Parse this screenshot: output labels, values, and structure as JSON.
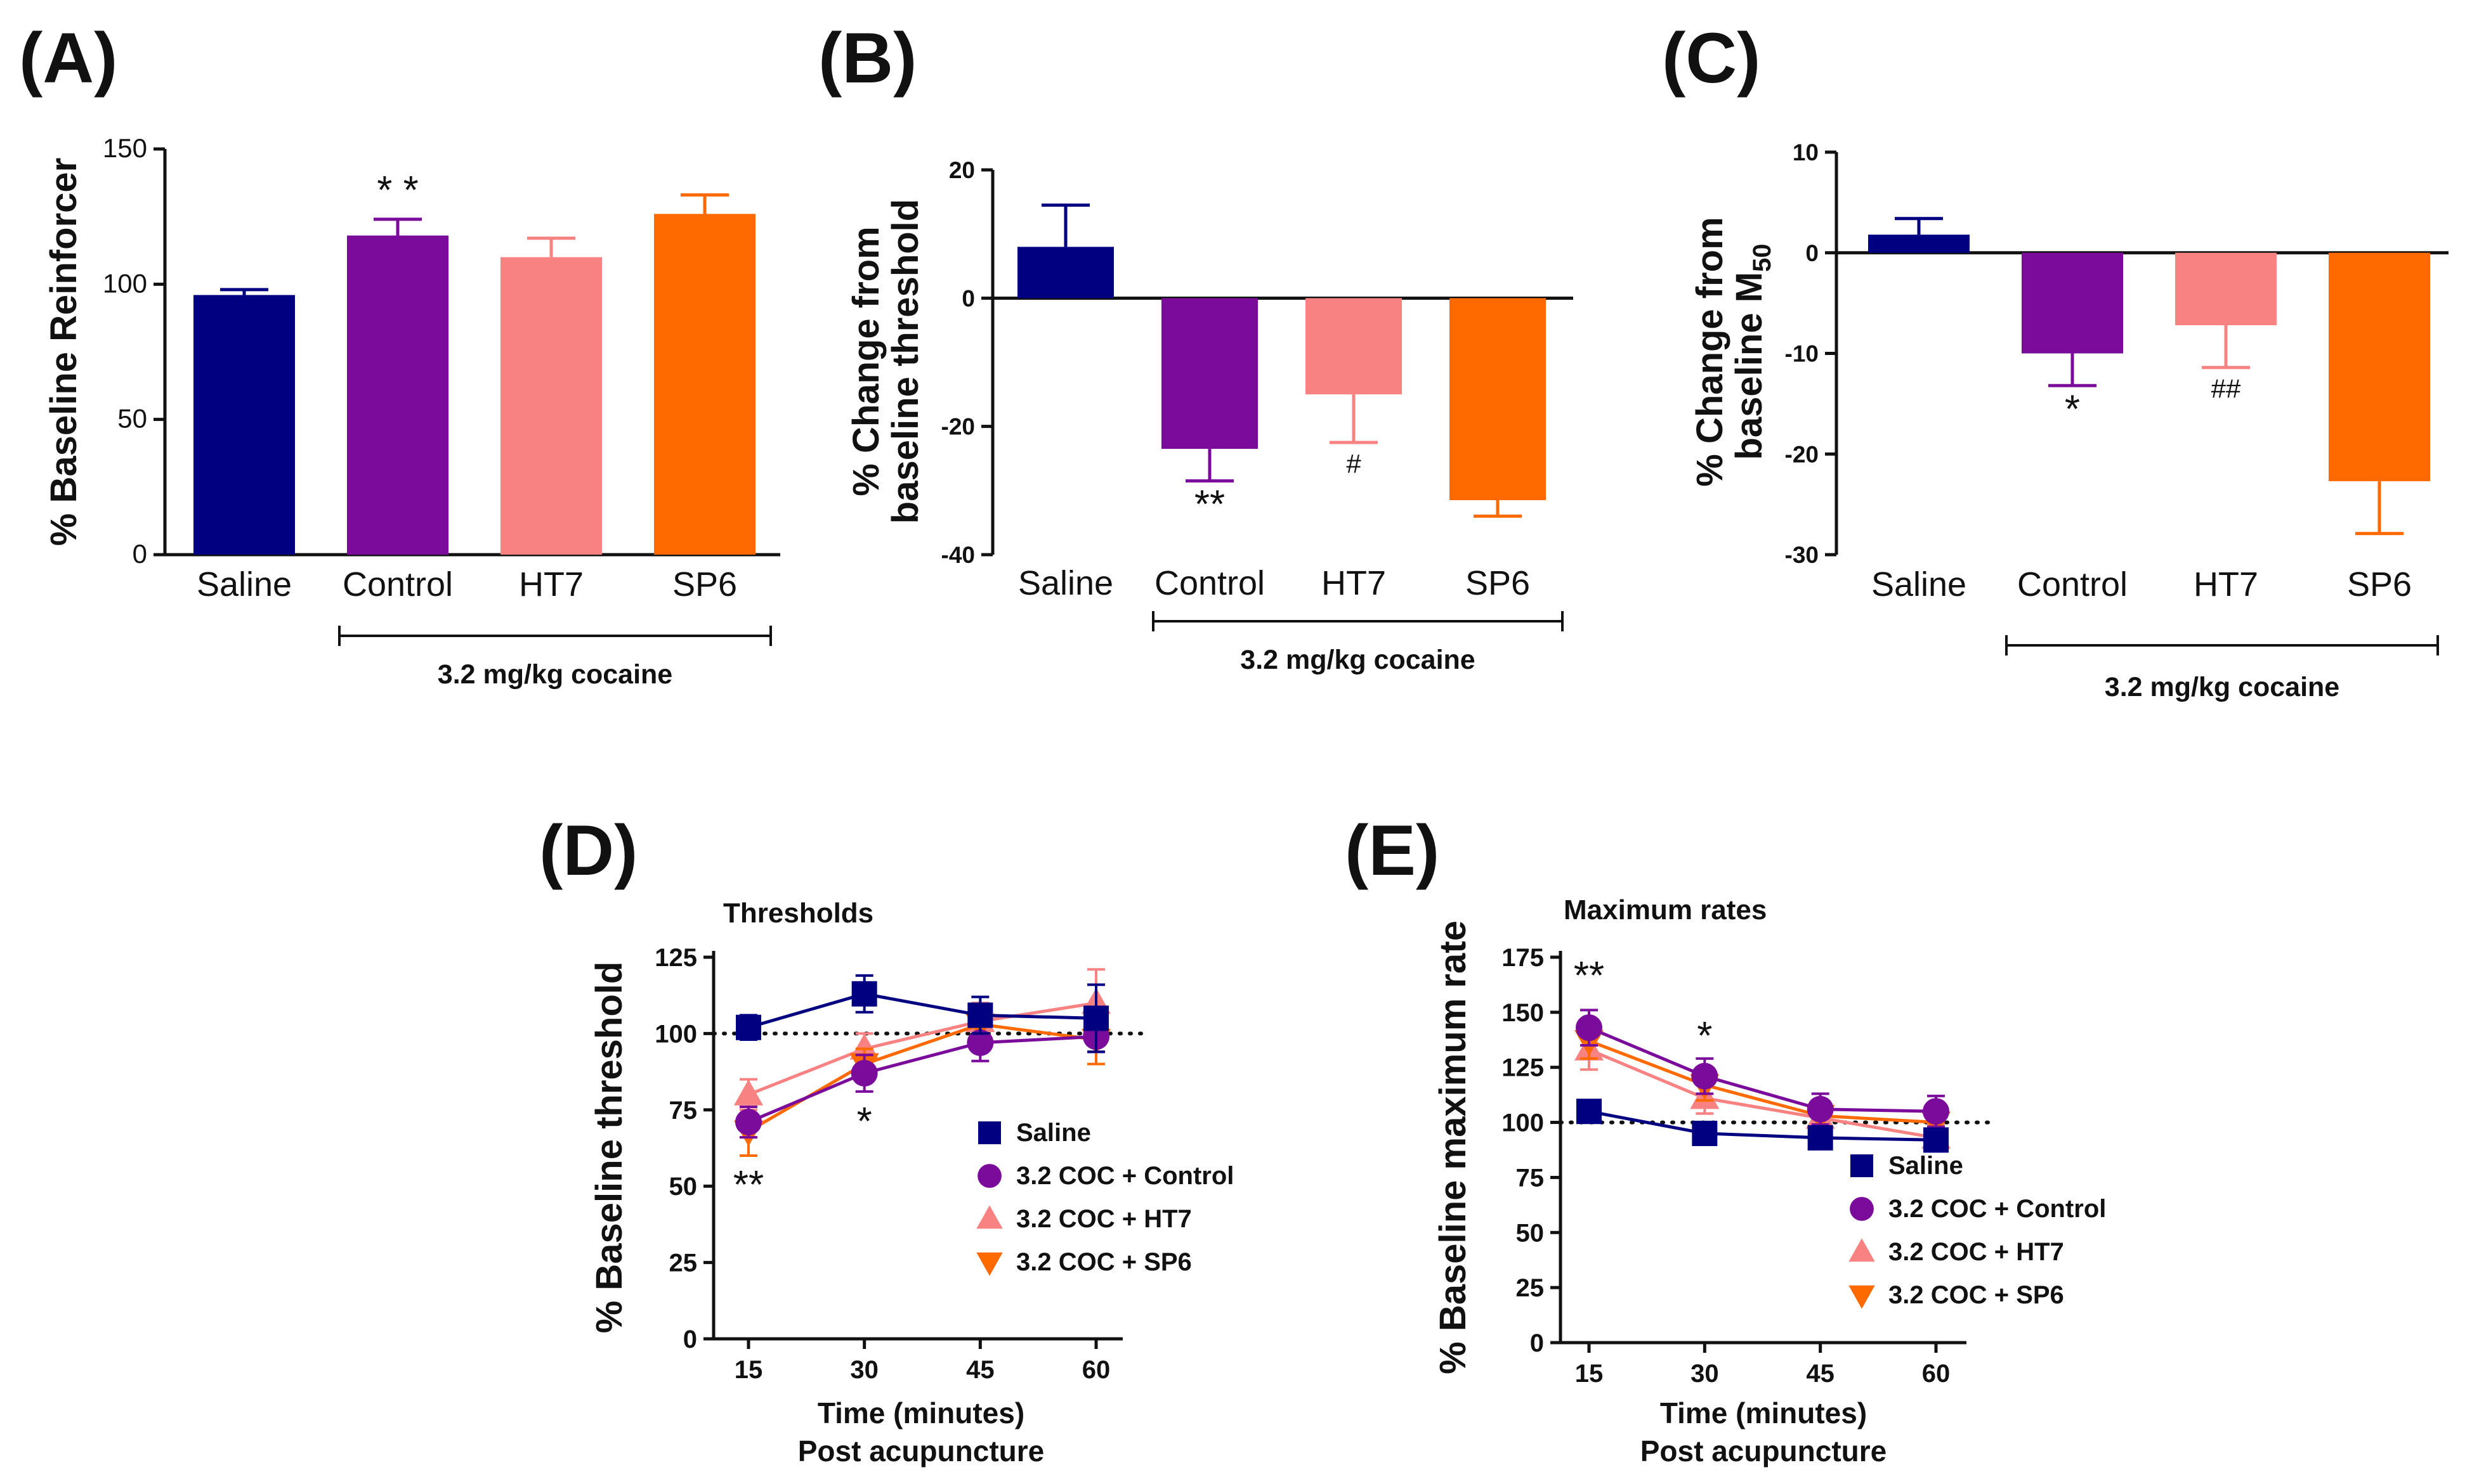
{
  "colors": {
    "saline": "#000080",
    "control": "#7b0c9b",
    "ht7": "#f88282",
    "sp6": "#ff6a00"
  },
  "panels": {
    "A": {
      "letter": "(A)"
    },
    "B": {
      "letter": "(B)"
    },
    "C": {
      "letter": "(C)"
    },
    "D": {
      "letter": "(D)"
    },
    "E": {
      "letter": "(E)"
    }
  },
  "chart_data": [
    {
      "id": "A",
      "type": "bar",
      "title": "",
      "ylabel": "% Baseline Reinforcer",
      "categories": [
        "Saline",
        "Control",
        "HT7",
        "SP6"
      ],
      "values": [
        96,
        118,
        110,
        126
      ],
      "errors": [
        2,
        6,
        7,
        7
      ],
      "ylim": [
        0,
        150
      ],
      "yticks": [
        0,
        50,
        100,
        150
      ],
      "bracket_label": "3.2 mg/kg cocaine",
      "annotations": [
        {
          "category": "Control",
          "text": "* *"
        }
      ]
    },
    {
      "id": "B",
      "type": "bar",
      "title": "",
      "ylabel_lines": [
        "% Change from",
        "baseline threshold"
      ],
      "categories": [
        "Saline",
        "Control",
        "HT7",
        "SP6"
      ],
      "values": [
        8,
        -23.5,
        -15,
        -31.5
      ],
      "errors": [
        6.5,
        5,
        7.5,
        2.5
      ],
      "ylim": [
        -40,
        20
      ],
      "yticks": [
        -40,
        -20,
        0,
        20
      ],
      "bracket_label": "3.2 mg/kg cocaine",
      "annotations": [
        {
          "category": "Control",
          "text": "**"
        },
        {
          "category": "HT7",
          "text": "#"
        }
      ]
    },
    {
      "id": "C",
      "type": "bar",
      "title": "",
      "ylabel_lines": [
        "% Change from",
        "baseline M"
      ],
      "ylabel_sub": "50",
      "categories": [
        "Saline",
        "Control",
        "HT7",
        "SP6"
      ],
      "values": [
        1.8,
        -10,
        -7.2,
        -22.7
      ],
      "errors": [
        1.6,
        3.2,
        4.2,
        5.2
      ],
      "ylim": [
        -30,
        10
      ],
      "yticks": [
        -30,
        -20,
        -10,
        0,
        10
      ],
      "bracket_label": "3.2 mg/kg cocaine",
      "annotations": [
        {
          "category": "Control",
          "text": "*"
        },
        {
          "category": "HT7",
          "text": "##"
        }
      ]
    },
    {
      "id": "D",
      "type": "line",
      "title": "Thresholds",
      "ylabel": "% Baseline threshold",
      "xlabel": "Time (minutes)",
      "xlabel2": "Post acupuncture",
      "x": [
        15,
        30,
        45,
        60
      ],
      "ylim": [
        0,
        125
      ],
      "yticks": [
        0,
        25,
        50,
        75,
        100,
        125
      ],
      "reference_line": 100,
      "series": [
        {
          "name": "Saline",
          "values": [
            102,
            113,
            106,
            105
          ],
          "errors": [
            4,
            6,
            6,
            11
          ]
        },
        {
          "name": "3.2 COC + Control",
          "values": [
            71,
            87,
            97,
            99
          ],
          "errors": [
            5,
            6,
            6,
            5
          ]
        },
        {
          "name": "3.2 COC + HT7",
          "values": [
            80,
            95,
            104,
            110
          ],
          "errors": [
            5,
            5,
            6,
            11
          ]
        },
        {
          "name": "3.2 COC + SP6",
          "values": [
            68,
            90,
            103,
            98
          ],
          "errors": [
            8,
            5,
            6,
            8
          ]
        }
      ],
      "annotations": [
        {
          "x": 15,
          "text": "**"
        },
        {
          "x": 30,
          "text": "*"
        }
      ]
    },
    {
      "id": "E",
      "type": "line",
      "title": "Maximum rates",
      "ylabel": "% Baseline maximum rate",
      "xlabel": "Time (minutes)",
      "xlabel2": "Post acupuncture",
      "x": [
        15,
        30,
        45,
        60
      ],
      "ylim": [
        0,
        175
      ],
      "yticks": [
        0,
        25,
        50,
        75,
        100,
        125,
        150,
        175
      ],
      "reference_line": 100,
      "series": [
        {
          "name": "Saline",
          "values": [
            105,
            95,
            93,
            92
          ],
          "errors": [
            3,
            3,
            3,
            3
          ]
        },
        {
          "name": "3.2 COC + Control",
          "values": [
            143,
            121,
            106,
            105
          ],
          "errors": [
            8,
            8,
            7,
            7
          ]
        },
        {
          "name": "3.2 COC + HT7",
          "values": [
            133,
            111,
            102,
            93
          ],
          "errors": [
            9,
            7,
            6,
            6
          ]
        },
        {
          "name": "3.2 COC + SP6",
          "values": [
            137,
            117,
            103,
            100
          ],
          "errors": [
            8,
            7,
            6,
            6
          ]
        }
      ],
      "annotations": [
        {
          "x": 15,
          "text": "**"
        },
        {
          "x": 30,
          "text": "*"
        }
      ]
    }
  ]
}
